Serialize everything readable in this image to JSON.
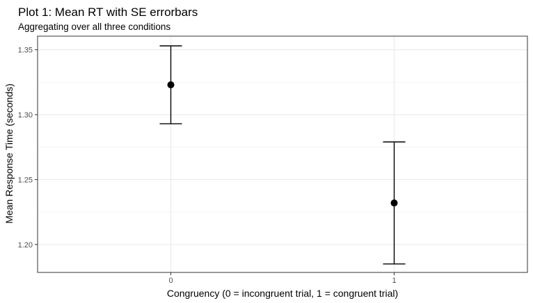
{
  "chart_data": {
    "type": "scatter",
    "title": "Plot 1: Mean RT with SE errorbars",
    "subtitle": "Aggregating over all three conditions",
    "xlabel": "Congruency (0 = incongruent trial, 1 = congruent trial)",
    "ylabel": "Mean Response Time (seconds)",
    "categories": [
      "0",
      "1"
    ],
    "points": [
      {
        "x": "0",
        "y": 1.323,
        "y_low": 1.293,
        "y_high": 1.353
      },
      {
        "x": "1",
        "y": 1.232,
        "y_low": 1.185,
        "y_high": 1.279
      }
    ],
    "yticks": [
      "1.20",
      "1.25",
      "1.30",
      "1.35"
    ],
    "ylim": [
      1.1785,
      1.3605
    ],
    "grid": true,
    "errorbars": "SE",
    "colors": {
      "point": "#000000",
      "grid_major": "#ebebeb",
      "grid_minor": "#f4f4f4",
      "panel_border": "#333333"
    }
  }
}
